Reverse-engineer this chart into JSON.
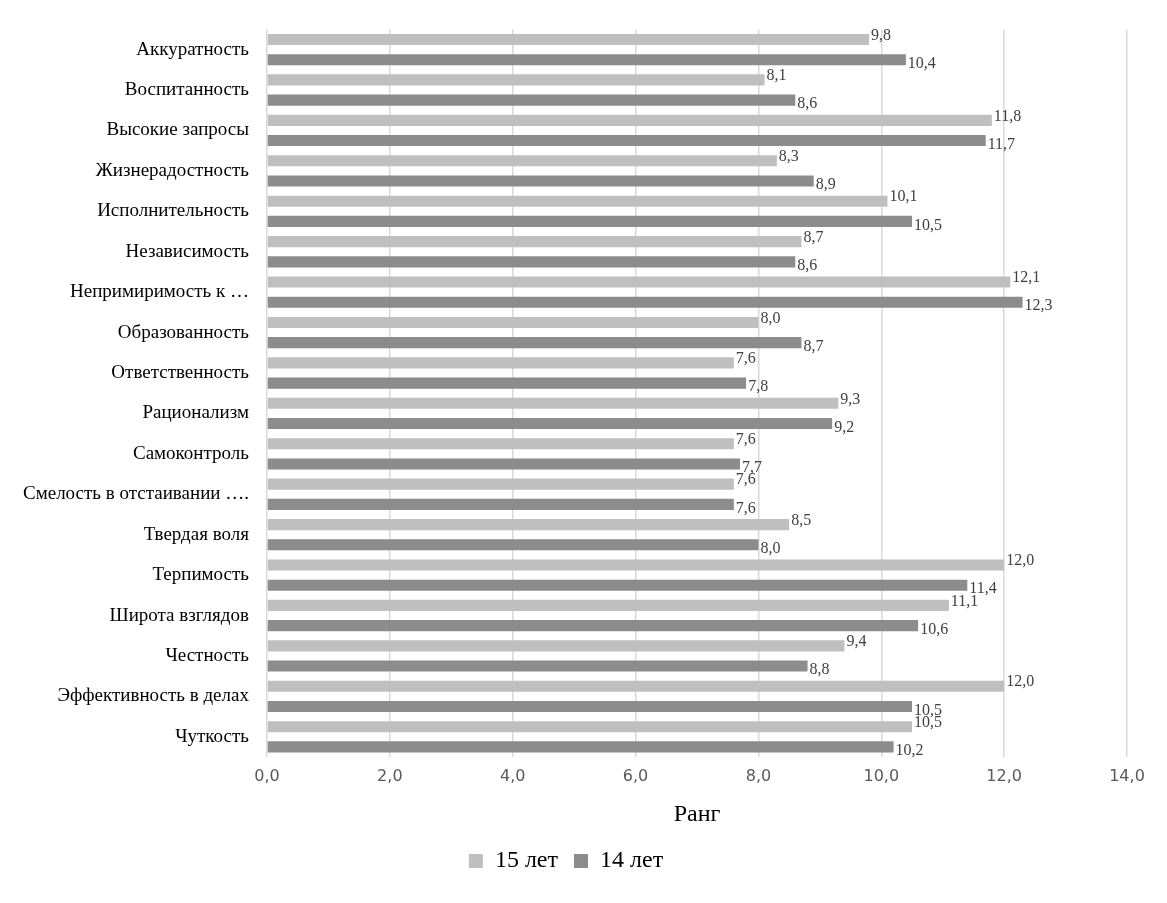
{
  "chart_data": {
    "type": "bar",
    "orientation": "horizontal",
    "xlabel": "Ранг",
    "categories": [
      "Аккуратность",
      "Воспитанность",
      "Высокие запросы",
      "Жизнерадостность",
      "Исполнительность",
      "Независимость",
      "Непримиримость к …",
      "Образованность",
      "Ответственность",
      "Рационализм",
      "Самоконтроль",
      "Смелость в отстаивании ….",
      "Твердая воля",
      "Терпимость",
      "Широта взглядов",
      "Честность",
      "Эффективность в делах",
      "Чуткость"
    ],
    "series": [
      {
        "name": "15 лет",
        "color": "#bfbfbf",
        "values": [
          9.8,
          8.1,
          11.8,
          8.3,
          10.1,
          8.7,
          12.1,
          8.0,
          7.6,
          9.3,
          7.6,
          7.6,
          8.5,
          12.0,
          11.1,
          9.4,
          12.0,
          10.5
        ],
        "value_labels": [
          "9,8",
          "8,1",
          "11,8",
          "8,3",
          "10,1",
          "8,7",
          "12,1",
          "8,0",
          "7,6",
          "9,3",
          "7,6",
          "7,6",
          "8,5",
          "12,0",
          "11,1",
          "9,4",
          "12,0",
          "10,5"
        ]
      },
      {
        "name": "14 лет",
        "color": "#8c8c8c",
        "values": [
          10.4,
          8.6,
          11.7,
          8.9,
          10.5,
          8.6,
          12.3,
          8.7,
          7.8,
          9.2,
          7.7,
          7.6,
          8.0,
          11.4,
          10.6,
          8.8,
          10.5,
          10.2
        ],
        "value_labels": [
          "10,4",
          "8,6",
          "11,7",
          "8,9",
          "10,5",
          "8,6",
          "12,3",
          "8,7",
          "7,8",
          "9,2",
          "7,7",
          "7,6",
          "8,0",
          "11,4",
          "10,6",
          "8,8",
          "10,5",
          "10,2"
        ]
      }
    ],
    "xlim": [
      0,
      14
    ],
    "xticks": [
      {
        "value": 0,
        "label": "0,0"
      },
      {
        "value": 2,
        "label": "2,0"
      },
      {
        "value": 4,
        "label": "4,0"
      },
      {
        "value": 6,
        "label": "6,0"
      },
      {
        "value": 8,
        "label": "8,0"
      },
      {
        "value": 10,
        "label": "10,0"
      },
      {
        "value": 12,
        "label": "12,0"
      },
      {
        "value": 14,
        "label": "14,0"
      }
    ],
    "grid": "x",
    "legend": "bottom"
  }
}
